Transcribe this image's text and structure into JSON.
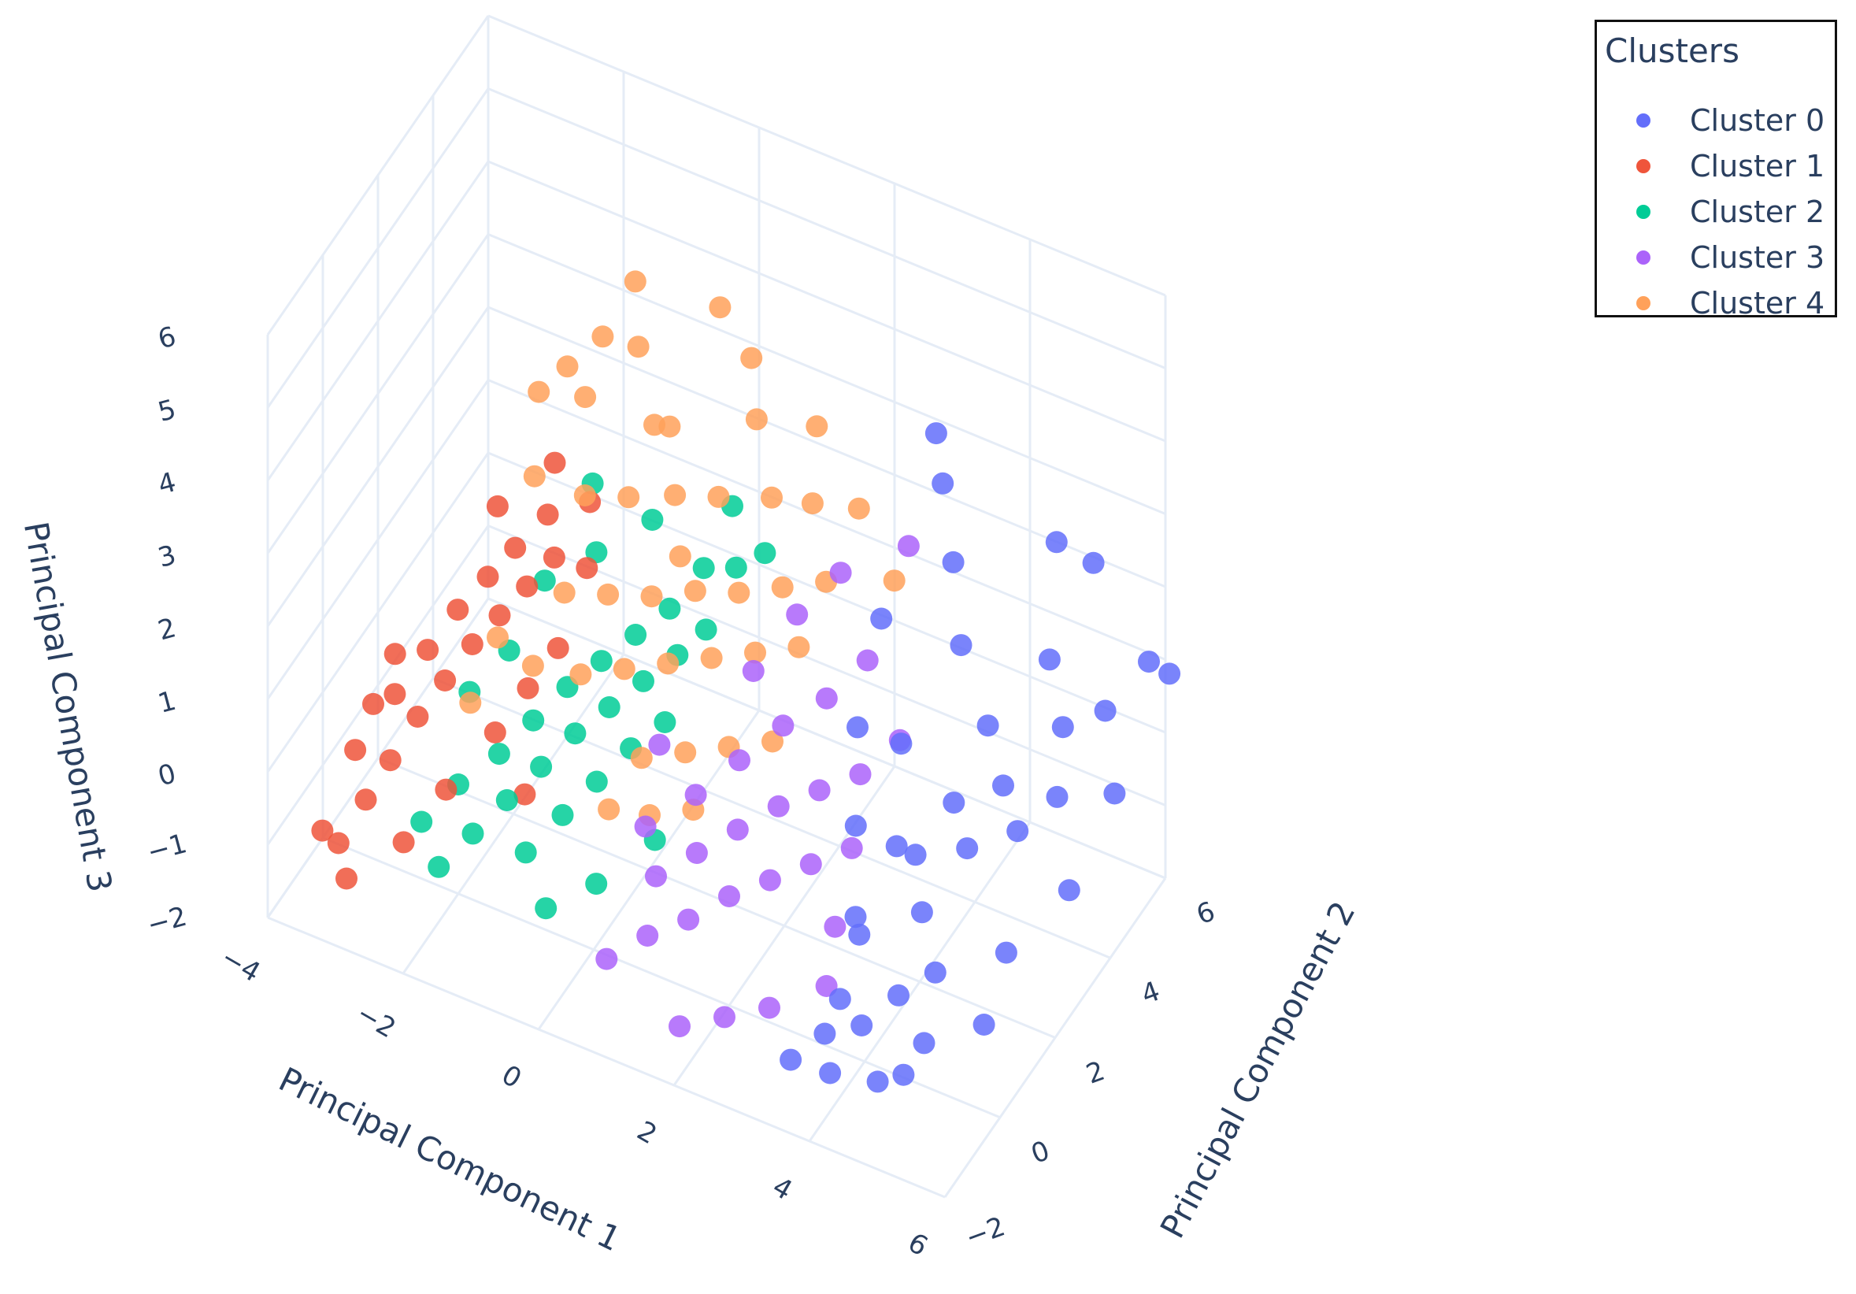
{
  "chart_data": {
    "type": "scatter3d",
    "legend": {
      "title": "Clusters",
      "position": "top-right",
      "items": [
        "Cluster 0",
        "Cluster 1",
        "Cluster 2",
        "Cluster 3",
        "Cluster 4"
      ]
    },
    "axes": {
      "x": {
        "title": "Principal Component 1",
        "range": [
          -4,
          6
        ],
        "ticks": [
          "−4",
          "−2",
          "0",
          "2",
          "4",
          "6"
        ]
      },
      "y": {
        "title": "Principal Component 2",
        "range": [
          -2,
          6
        ],
        "ticks": [
          "−2",
          "0",
          "2",
          "4",
          "6"
        ]
      },
      "z": {
        "title": "Principal Component 3",
        "range": [
          -2,
          6
        ],
        "ticks": [
          "−2",
          "−1",
          "0",
          "1",
          "2",
          "3",
          "4",
          "5",
          "6"
        ]
      }
    },
    "grid": true,
    "colors": {
      "Cluster 0": "#636efa",
      "Cluster 1": "#ef553b",
      "Cluster 2": "#00cc96",
      "Cluster 3": "#ab63fa",
      "Cluster 4": "#ffa15a"
    },
    "series": [
      {
        "name": "Cluster 0",
        "color": "#636efa",
        "points": [
          [
            3.6,
            -1.7,
            -1.2
          ],
          [
            3.9,
            -1.2,
            -1.0
          ],
          [
            4.2,
            -0.6,
            -1.1
          ],
          [
            4.5,
            0.0,
            -0.9
          ],
          [
            4.8,
            0.6,
            -0.8
          ],
          [
            5.0,
            -0.3,
            -1.2
          ],
          [
            3.8,
            0.3,
            -0.5
          ],
          [
            4.4,
            1.1,
            -0.4
          ],
          [
            4.1,
            1.6,
            0.0
          ],
          [
            4.7,
            2.0,
            0.1
          ],
          [
            5.2,
            2.6,
            0.2
          ],
          [
            5.5,
            3.3,
            0.4
          ],
          [
            5.3,
            4.0,
            0.9
          ],
          [
            4.9,
            4.5,
            1.4
          ],
          [
            5.6,
            4.8,
            0.8
          ],
          [
            6.0,
            5.4,
            1.3
          ],
          [
            6.1,
            5.9,
            0.9
          ],
          [
            4.6,
            3.0,
            1.2
          ],
          [
            4.0,
            3.5,
            1.8
          ],
          [
            3.6,
            4.2,
            2.4
          ],
          [
            3.2,
            4.8,
            3.0
          ],
          [
            2.9,
            5.3,
            3.3
          ],
          [
            4.8,
            5.0,
            2.7
          ],
          [
            5.1,
            5.6,
            2.2
          ],
          [
            3.4,
            2.8,
            0.6
          ],
          [
            3.0,
            2.2,
            1.0
          ],
          [
            3.7,
            1.9,
            -0.2
          ],
          [
            5.8,
            3.0,
            -0.6
          ],
          [
            5.4,
            1.7,
            -0.9
          ],
          [
            4.3,
            2.5,
            0.3
          ],
          [
            3.5,
            0.9,
            -0.7
          ],
          [
            4.9,
            -0.8,
            -1.4
          ],
          [
            4.1,
            -1.5,
            -1.3
          ],
          [
            5.6,
            0.4,
            -1.1
          ],
          [
            3.3,
            1.4,
            0.2
          ],
          [
            2.7,
            3.8,
            1.5
          ],
          [
            5.9,
            4.4,
            0.0
          ],
          [
            4.5,
            3.8,
            -0.1
          ],
          [
            3.8,
            -0.4,
            -1.0
          ],
          [
            4.6,
            -1.0,
            -1.5
          ]
        ]
      },
      {
        "name": "Cluster 1",
        "color": "#ef553b",
        "points": [
          [
            -3.2,
            -1.4,
            -1.0
          ],
          [
            -3.0,
            -0.9,
            -0.6
          ],
          [
            -2.8,
            -0.5,
            -0.2
          ],
          [
            -2.6,
            0.0,
            0.2
          ],
          [
            -2.4,
            0.5,
            0.5
          ],
          [
            -2.2,
            1.0,
            0.8
          ],
          [
            -2.0,
            1.5,
            1.0
          ],
          [
            -1.8,
            2.0,
            1.2
          ],
          [
            -1.6,
            2.5,
            1.4
          ],
          [
            -3.4,
            -0.3,
            -0.4
          ],
          [
            -3.1,
            0.4,
            0.1
          ],
          [
            -2.9,
            1.1,
            0.4
          ],
          [
            -2.7,
            1.7,
            0.7
          ],
          [
            -2.5,
            2.3,
            0.9
          ],
          [
            -2.3,
            2.8,
            1.1
          ],
          [
            -3.6,
            -1.0,
            -1.2
          ],
          [
            -3.3,
            0.9,
            0.3
          ],
          [
            -1.9,
            3.0,
            1.6
          ],
          [
            -1.4,
            3.3,
            1.8
          ],
          [
            -2.1,
            -0.2,
            -0.5
          ],
          [
            -1.7,
            0.6,
            0.0
          ],
          [
            -1.5,
            1.3,
            0.3
          ],
          [
            -3.5,
            0.6,
            -0.3
          ],
          [
            -2.6,
            2.9,
            1.5
          ],
          [
            -2.0,
            3.5,
            2.0
          ],
          [
            -1.2,
            2.7,
            1.3
          ],
          [
            -3.0,
            -1.6,
            -1.3
          ],
          [
            -2.4,
            -1.0,
            -0.9
          ],
          [
            -1.3,
            1.9,
            0.6
          ],
          [
            -1.1,
            0.2,
            -0.4
          ]
        ]
      },
      {
        "name": "Cluster 2",
        "color": "#00cc96",
        "points": [
          [
            -1.8,
            -1.2,
            -0.9
          ],
          [
            -1.5,
            -0.7,
            -0.6
          ],
          [
            -1.2,
            -0.2,
            -0.3
          ],
          [
            -0.9,
            0.3,
            0.0
          ],
          [
            -0.6,
            0.8,
            0.3
          ],
          [
            -0.3,
            1.3,
            0.5
          ],
          [
            0.0,
            1.8,
            0.7
          ],
          [
            0.3,
            2.3,
            0.9
          ],
          [
            -1.6,
            0.5,
            -0.2
          ],
          [
            -1.3,
            1.0,
            0.1
          ],
          [
            -1.0,
            1.5,
            0.4
          ],
          [
            -0.7,
            2.0,
            0.6
          ],
          [
            -0.4,
            2.5,
            0.8
          ],
          [
            -0.1,
            3.0,
            1.0
          ],
          [
            0.2,
            3.5,
            1.4
          ],
          [
            -2.0,
            0.0,
            -0.5
          ],
          [
            -2.2,
            0.9,
            0.2
          ],
          [
            -1.9,
            1.6,
            0.5
          ],
          [
            -0.8,
            -0.5,
            -0.7
          ],
          [
            -0.5,
            0.1,
            -0.4
          ],
          [
            -0.2,
            0.6,
            -0.1
          ],
          [
            0.1,
            1.1,
            0.2
          ],
          [
            0.4,
            1.6,
            0.4
          ],
          [
            0.6,
            2.6,
            1.2
          ],
          [
            0.8,
            3.2,
            1.8
          ],
          [
            0.5,
            3.8,
            2.2
          ],
          [
            -1.1,
            2.8,
            1.5
          ],
          [
            -1.7,
            2.4,
            1.1
          ],
          [
            -2.3,
            -0.6,
            -0.8
          ],
          [
            -0.3,
            -1.0,
            -1.0
          ],
          [
            0.2,
            -0.4,
            -0.8
          ],
          [
            0.7,
            0.5,
            -0.5
          ],
          [
            -1.4,
            3.4,
            2.0
          ],
          [
            0.9,
            4.0,
            1.6
          ],
          [
            -0.6,
            3.6,
            1.7
          ]
        ]
      },
      {
        "name": "Cluster 3",
        "color": "#ab63fa",
        "points": [
          [
            0.8,
            -1.5,
            -1.0
          ],
          [
            1.2,
            -1.0,
            -0.8
          ],
          [
            1.6,
            -0.5,
            -0.7
          ],
          [
            2.0,
            0.0,
            -0.5
          ],
          [
            2.4,
            0.5,
            -0.4
          ],
          [
            2.8,
            1.0,
            -0.3
          ],
          [
            3.2,
            1.5,
            -0.2
          ],
          [
            1.0,
            -0.2,
            -0.5
          ],
          [
            1.4,
            0.3,
            -0.3
          ],
          [
            1.8,
            0.8,
            -0.1
          ],
          [
            2.2,
            1.3,
            0.1
          ],
          [
            2.6,
            1.8,
            0.2
          ],
          [
            3.0,
            2.3,
            0.3
          ],
          [
            0.6,
            0.4,
            -0.3
          ],
          [
            1.1,
            1.0,
            0.0
          ],
          [
            1.5,
            1.6,
            0.3
          ],
          [
            1.9,
            2.2,
            0.6
          ],
          [
            2.3,
            2.8,
            0.8
          ],
          [
            2.7,
            3.3,
            1.2
          ],
          [
            3.4,
            0.4,
            -0.6
          ],
          [
            3.6,
            -0.4,
            -0.9
          ],
          [
            3.0,
            -1.0,
            -1.1
          ],
          [
            2.5,
            -1.4,
            -1.2
          ],
          [
            2.0,
            -1.8,
            -1.3
          ],
          [
            1.3,
            2.6,
            0.9
          ],
          [
            1.7,
            3.2,
            1.5
          ],
          [
            2.1,
            3.8,
            1.9
          ],
          [
            2.9,
            4.3,
            2.3
          ],
          [
            3.3,
            3.0,
            0.5
          ],
          [
            0.4,
            1.4,
            0.2
          ]
        ]
      },
      {
        "name": "Cluster 4",
        "color": "#ffa15a",
        "points": [
          [
            -0.2,
            2.0,
            6.0
          ],
          [
            -0.6,
            1.8,
            5.2
          ],
          [
            -1.0,
            1.5,
            4.8
          ],
          [
            -1.3,
            1.2,
            4.5
          ],
          [
            -0.9,
            1.9,
            4.2
          ],
          [
            -0.4,
            2.6,
            4.7
          ],
          [
            0.0,
            2.2,
            4.0
          ],
          [
            0.4,
            3.6,
            5.0
          ],
          [
            0.7,
            4.0,
            4.2
          ],
          [
            0.9,
            3.7,
            3.6
          ],
          [
            -1.2,
            0.8,
            3.6
          ],
          [
            -0.7,
            1.4,
            3.2
          ],
          [
            -0.3,
            2.0,
            3.0
          ],
          [
            0.1,
            2.7,
            2.8
          ],
          [
            0.5,
            3.3,
            2.6
          ],
          [
            1.0,
            4.0,
            2.4
          ],
          [
            1.4,
            4.5,
            2.2
          ],
          [
            -0.8,
            0.9,
            2.1
          ],
          [
            -0.4,
            1.5,
            1.9
          ],
          [
            0.0,
            2.1,
            1.7
          ],
          [
            0.4,
            2.7,
            1.6
          ],
          [
            0.8,
            3.3,
            1.4
          ],
          [
            1.2,
            3.9,
            1.3
          ],
          [
            1.6,
            4.5,
            1.2
          ],
          [
            -1.1,
            0.5,
            1.2
          ],
          [
            -0.6,
            1.0,
            1.0
          ],
          [
            -0.2,
            1.6,
            0.9
          ],
          [
            0.2,
            2.2,
            0.8
          ],
          [
            0.6,
            2.8,
            0.7
          ],
          [
            1.0,
            3.4,
            0.6
          ],
          [
            1.4,
            4.0,
            0.5
          ],
          [
            0.3,
            1.0,
            0.2
          ],
          [
            0.7,
            1.6,
            0.1
          ],
          [
            1.1,
            2.2,
            0.0
          ],
          [
            1.5,
            2.8,
            -0.1
          ],
          [
            0.1,
            0.3,
            -0.2
          ],
          [
            0.5,
            0.8,
            -0.4
          ],
          [
            0.9,
            1.4,
            -0.5
          ],
          [
            -1.5,
            0.2,
            1.6
          ],
          [
            -1.7,
            -0.3,
            0.9
          ],
          [
            1.8,
            5.2,
            1.9
          ],
          [
            2.2,
            5.5,
            0.9
          ],
          [
            1.3,
            4.9,
            3.0
          ],
          [
            -0.1,
            3.0,
            3.5
          ],
          [
            0.3,
            2.4,
            2.2
          ]
        ]
      }
    ]
  }
}
